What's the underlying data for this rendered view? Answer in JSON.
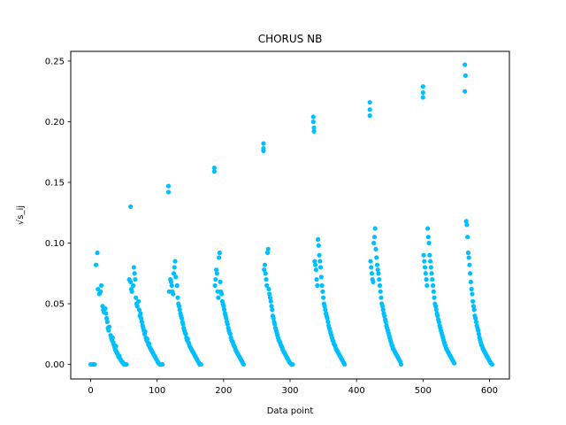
{
  "chart_data": {
    "type": "scatter",
    "title": "CHORUS NB",
    "xlabel": "Data point",
    "ylabel": "√s_ij",
    "xlim": [
      -30,
      630
    ],
    "ylim": [
      -0.012,
      0.258
    ],
    "xticks": [
      0,
      100,
      200,
      300,
      400,
      500,
      600
    ],
    "yticks": [
      0.0,
      0.05,
      0.1,
      0.15,
      0.2,
      0.25
    ],
    "ytick_labels": [
      "0.00",
      "0.05",
      "0.10",
      "0.15",
      "0.20",
      "0.25"
    ],
    "grid": false,
    "marker_color": "#00bfff",
    "points": [
      [
        0,
        0
      ],
      [
        2,
        0
      ],
      [
        4,
        0
      ],
      [
        6,
        0
      ],
      [
        8,
        0.082
      ],
      [
        10,
        0.092
      ],
      [
        11,
        0.062
      ],
      [
        13,
        0.058
      ],
      [
        15,
        0.06
      ],
      [
        16,
        0.065
      ],
      [
        18,
        0.048
      ],
      [
        19,
        0.045
      ],
      [
        20,
        0.043
      ],
      [
        22,
        0.046
      ],
      [
        23,
        0.042
      ],
      [
        24,
        0.038
      ],
      [
        25,
        0.035
      ],
      [
        26,
        0.03
      ],
      [
        27,
        0.028
      ],
      [
        28,
        0.031
      ],
      [
        30,
        0.024
      ],
      [
        31,
        0.022
      ],
      [
        32,
        0.02
      ],
      [
        33,
        0.022
      ],
      [
        34,
        0.018
      ],
      [
        35,
        0.016
      ],
      [
        36,
        0.014
      ],
      [
        37,
        0.012
      ],
      [
        38,
        0.015
      ],
      [
        39,
        0.01
      ],
      [
        40,
        0.009
      ],
      [
        41,
        0.008
      ],
      [
        42,
        0.006
      ],
      [
        43,
        0.007
      ],
      [
        44,
        0.005
      ],
      [
        45,
        0.004
      ],
      [
        46,
        0.003
      ],
      [
        47,
        0.002
      ],
      [
        48,
        0.002
      ],
      [
        49,
        0.001
      ],
      [
        50,
        0
      ],
      [
        52,
        0
      ],
      [
        54,
        0
      ],
      [
        60,
        0.13
      ],
      [
        58,
        0.07
      ],
      [
        60,
        0.068
      ],
      [
        61,
        0.062
      ],
      [
        62,
        0.06
      ],
      [
        64,
        0.065
      ],
      [
        65,
        0.08
      ],
      [
        66,
        0.075
      ],
      [
        67,
        0.07
      ],
      [
        68,
        0.055
      ],
      [
        69,
        0.05
      ],
      [
        70,
        0.048
      ],
      [
        72,
        0.052
      ],
      [
        73,
        0.045
      ],
      [
        74,
        0.04
      ],
      [
        75,
        0.042
      ],
      [
        76,
        0.038
      ],
      [
        77,
        0.035
      ],
      [
        78,
        0.032
      ],
      [
        79,
        0.03
      ],
      [
        80,
        0.028
      ],
      [
        81,
        0.025
      ],
      [
        82,
        0.027
      ],
      [
        83,
        0.022
      ],
      [
        84,
        0.02
      ],
      [
        85,
        0.021
      ],
      [
        86,
        0.018
      ],
      [
        87,
        0.016
      ],
      [
        88,
        0.017
      ],
      [
        89,
        0.014
      ],
      [
        90,
        0.013
      ],
      [
        91,
        0.012
      ],
      [
        92,
        0.011
      ],
      [
        93,
        0.01
      ],
      [
        94,
        0.009
      ],
      [
        95,
        0.008
      ],
      [
        96,
        0.007
      ],
      [
        97,
        0.006
      ],
      [
        98,
        0.005
      ],
      [
        99,
        0.004
      ],
      [
        100,
        0.003
      ],
      [
        101,
        0.002
      ],
      [
        102,
        0.001
      ],
      [
        104,
        0
      ],
      [
        106,
        0
      ],
      [
        108,
        0
      ],
      [
        117,
        0.147
      ],
      [
        117,
        0.142
      ],
      [
        118,
        0.06
      ],
      [
        120,
        0.07
      ],
      [
        121,
        0.068
      ],
      [
        122,
        0.065
      ],
      [
        123,
        0.06
      ],
      [
        124,
        0.058
      ],
      [
        125,
        0.075
      ],
      [
        126,
        0.08
      ],
      [
        127,
        0.085
      ],
      [
        128,
        0.072
      ],
      [
        130,
        0.065
      ],
      [
        131,
        0.055
      ],
      [
        132,
        0.05
      ],
      [
        133,
        0.048
      ],
      [
        134,
        0.045
      ],
      [
        135,
        0.042
      ],
      [
        136,
        0.04
      ],
      [
        137,
        0.038
      ],
      [
        138,
        0.035
      ],
      [
        139,
        0.033
      ],
      [
        140,
        0.03
      ],
      [
        141,
        0.028
      ],
      [
        142,
        0.026
      ],
      [
        143,
        0.025
      ],
      [
        144,
        0.022
      ],
      [
        145,
        0.02
      ],
      [
        146,
        0.021
      ],
      [
        147,
        0.018
      ],
      [
        148,
        0.017
      ],
      [
        149,
        0.015
      ],
      [
        150,
        0.014
      ],
      [
        151,
        0.013
      ],
      [
        152,
        0.012
      ],
      [
        153,
        0.011
      ],
      [
        154,
        0.01
      ],
      [
        155,
        0.009
      ],
      [
        156,
        0.008
      ],
      [
        157,
        0.007
      ],
      [
        158,
        0.006
      ],
      [
        159,
        0.005
      ],
      [
        160,
        0.004
      ],
      [
        161,
        0.003
      ],
      [
        162,
        0.002
      ],
      [
        163,
        0.001
      ],
      [
        164,
        0
      ],
      [
        166,
        0
      ],
      [
        186,
        0.162
      ],
      [
        186,
        0.159
      ],
      [
        187,
        0.065
      ],
      [
        188,
        0.07
      ],
      [
        189,
        0.078
      ],
      [
        190,
        0.075
      ],
      [
        191,
        0.06
      ],
      [
        192,
        0.055
      ],
      [
        193,
        0.088
      ],
      [
        194,
        0.092
      ],
      [
        195,
        0.068
      ],
      [
        196,
        0.06
      ],
      [
        197,
        0.058
      ],
      [
        198,
        0.052
      ],
      [
        199,
        0.05
      ],
      [
        200,
        0.048
      ],
      [
        201,
        0.045
      ],
      [
        202,
        0.042
      ],
      [
        203,
        0.04
      ],
      [
        204,
        0.038
      ],
      [
        205,
        0.035
      ],
      [
        206,
        0.033
      ],
      [
        207,
        0.03
      ],
      [
        208,
        0.028
      ],
      [
        209,
        0.026
      ],
      [
        210,
        0.025
      ],
      [
        211,
        0.022
      ],
      [
        212,
        0.02
      ],
      [
        213,
        0.019
      ],
      [
        214,
        0.018
      ],
      [
        215,
        0.016
      ],
      [
        216,
        0.015
      ],
      [
        217,
        0.014
      ],
      [
        218,
        0.012
      ],
      [
        219,
        0.011
      ],
      [
        220,
        0.01
      ],
      [
        221,
        0.009
      ],
      [
        222,
        0.008
      ],
      [
        223,
        0.007
      ],
      [
        224,
        0.006
      ],
      [
        225,
        0.005
      ],
      [
        226,
        0.004
      ],
      [
        227,
        0.003
      ],
      [
        228,
        0.002
      ],
      [
        229,
        0.001
      ],
      [
        230,
        0
      ],
      [
        260,
        0.182
      ],
      [
        260,
        0.178
      ],
      [
        260,
        0.176
      ],
      [
        261,
        0.078
      ],
      [
        262,
        0.082
      ],
      [
        263,
        0.075
      ],
      [
        264,
        0.07
      ],
      [
        265,
        0.065
      ],
      [
        266,
        0.092
      ],
      [
        267,
        0.095
      ],
      [
        268,
        0.062
      ],
      [
        269,
        0.058
      ],
      [
        270,
        0.055
      ],
      [
        271,
        0.052
      ],
      [
        272,
        0.048
      ],
      [
        273,
        0.045
      ],
      [
        274,
        0.04
      ],
      [
        275,
        0.038
      ],
      [
        276,
        0.035
      ],
      [
        277,
        0.033
      ],
      [
        278,
        0.03
      ],
      [
        279,
        0.028
      ],
      [
        280,
        0.026
      ],
      [
        281,
        0.024
      ],
      [
        282,
        0.022
      ],
      [
        283,
        0.02
      ],
      [
        284,
        0.019
      ],
      [
        285,
        0.018
      ],
      [
        286,
        0.016
      ],
      [
        287,
        0.015
      ],
      [
        288,
        0.014
      ],
      [
        289,
        0.012
      ],
      [
        290,
        0.011
      ],
      [
        291,
        0.01
      ],
      [
        292,
        0.009
      ],
      [
        293,
        0.008
      ],
      [
        294,
        0.007
      ],
      [
        295,
        0.006
      ],
      [
        296,
        0.005
      ],
      [
        297,
        0.004
      ],
      [
        298,
        0.003
      ],
      [
        299,
        0.002
      ],
      [
        300,
        0.001
      ],
      [
        302,
        0
      ],
      [
        304,
        0
      ],
      [
        335,
        0.204
      ],
      [
        335,
        0.2
      ],
      [
        336,
        0.195
      ],
      [
        336,
        0.192
      ],
      [
        337,
        0.085
      ],
      [
        338,
        0.082
      ],
      [
        339,
        0.078
      ],
      [
        340,
        0.07
      ],
      [
        341,
        0.065
      ],
      [
        342,
        0.103
      ],
      [
        343,
        0.098
      ],
      [
        344,
        0.09
      ],
      [
        345,
        0.085
      ],
      [
        346,
        0.08
      ],
      [
        347,
        0.072
      ],
      [
        348,
        0.065
      ],
      [
        349,
        0.06
      ],
      [
        350,
        0.055
      ],
      [
        351,
        0.05
      ],
      [
        352,
        0.048
      ],
      [
        353,
        0.045
      ],
      [
        354,
        0.042
      ],
      [
        355,
        0.04
      ],
      [
        356,
        0.038
      ],
      [
        357,
        0.035
      ],
      [
        358,
        0.032
      ],
      [
        359,
        0.03
      ],
      [
        360,
        0.028
      ],
      [
        361,
        0.026
      ],
      [
        362,
        0.024
      ],
      [
        363,
        0.022
      ],
      [
        364,
        0.02
      ],
      [
        365,
        0.019
      ],
      [
        366,
        0.017
      ],
      [
        367,
        0.016
      ],
      [
        368,
        0.015
      ],
      [
        369,
        0.013
      ],
      [
        370,
        0.012
      ],
      [
        371,
        0.011
      ],
      [
        372,
        0.01
      ],
      [
        373,
        0.009
      ],
      [
        374,
        0.008
      ],
      [
        375,
        0.007
      ],
      [
        376,
        0.006
      ],
      [
        377,
        0.005
      ],
      [
        378,
        0.004
      ],
      [
        379,
        0.003
      ],
      [
        380,
        0.002
      ],
      [
        381,
        0.001
      ],
      [
        382,
        0
      ],
      [
        420,
        0.216
      ],
      [
        420,
        0.21
      ],
      [
        420,
        0.205
      ],
      [
        421,
        0.085
      ],
      [
        422,
        0.08
      ],
      [
        423,
        0.075
      ],
      [
        424,
        0.07
      ],
      [
        425,
        0.068
      ],
      [
        426,
        0.1
      ],
      [
        427,
        0.105
      ],
      [
        428,
        0.112
      ],
      [
        429,
        0.095
      ],
      [
        430,
        0.088
      ],
      [
        431,
        0.082
      ],
      [
        432,
        0.078
      ],
      [
        433,
        0.075
      ],
      [
        434,
        0.07
      ],
      [
        435,
        0.065
      ],
      [
        436,
        0.06
      ],
      [
        437,
        0.055
      ],
      [
        438,
        0.05
      ],
      [
        439,
        0.048
      ],
      [
        440,
        0.045
      ],
      [
        441,
        0.042
      ],
      [
        442,
        0.04
      ],
      [
        443,
        0.037
      ],
      [
        444,
        0.035
      ],
      [
        445,
        0.032
      ],
      [
        446,
        0.03
      ],
      [
        447,
        0.028
      ],
      [
        448,
        0.026
      ],
      [
        449,
        0.024
      ],
      [
        450,
        0.022
      ],
      [
        451,
        0.02
      ],
      [
        452,
        0.018
      ],
      [
        453,
        0.016
      ],
      [
        454,
        0.015
      ],
      [
        455,
        0.013
      ],
      [
        456,
        0.012
      ],
      [
        457,
        0.011
      ],
      [
        458,
        0.01
      ],
      [
        459,
        0.009
      ],
      [
        460,
        0.008
      ],
      [
        461,
        0.007
      ],
      [
        462,
        0.006
      ],
      [
        463,
        0.005
      ],
      [
        464,
        0.004
      ],
      [
        465,
        0.003
      ],
      [
        466,
        0.002
      ],
      [
        467,
        0
      ],
      [
        500,
        0.229
      ],
      [
        500,
        0.224
      ],
      [
        500,
        0.22
      ],
      [
        501,
        0.09
      ],
      [
        502,
        0.085
      ],
      [
        503,
        0.08
      ],
      [
        504,
        0.075
      ],
      [
        505,
        0.07
      ],
      [
        506,
        0.065
      ],
      [
        507,
        0.112
      ],
      [
        508,
        0.105
      ],
      [
        509,
        0.1
      ],
      [
        510,
        0.09
      ],
      [
        511,
        0.085
      ],
      [
        512,
        0.08
      ],
      [
        513,
        0.075
      ],
      [
        514,
        0.07
      ],
      [
        515,
        0.065
      ],
      [
        516,
        0.06
      ],
      [
        517,
        0.055
      ],
      [
        518,
        0.05
      ],
      [
        519,
        0.048
      ],
      [
        520,
        0.045
      ],
      [
        521,
        0.042
      ],
      [
        522,
        0.04
      ],
      [
        523,
        0.037
      ],
      [
        524,
        0.035
      ],
      [
        525,
        0.032
      ],
      [
        526,
        0.03
      ],
      [
        527,
        0.028
      ],
      [
        528,
        0.026
      ],
      [
        529,
        0.024
      ],
      [
        530,
        0.022
      ],
      [
        531,
        0.02
      ],
      [
        532,
        0.018
      ],
      [
        533,
        0.016
      ],
      [
        534,
        0.015
      ],
      [
        535,
        0.013
      ],
      [
        536,
        0.012
      ],
      [
        537,
        0.011
      ],
      [
        538,
        0.01
      ],
      [
        539,
        0.009
      ],
      [
        540,
        0.008
      ],
      [
        541,
        0.007
      ],
      [
        542,
        0.006
      ],
      [
        543,
        0.005
      ],
      [
        544,
        0.004
      ],
      [
        545,
        0.003
      ],
      [
        546,
        0.002
      ],
      [
        547,
        0.001
      ],
      [
        563,
        0.247
      ],
      [
        564,
        0.238
      ],
      [
        563,
        0.225
      ],
      [
        565,
        0.118
      ],
      [
        566,
        0.115
      ],
      [
        567,
        0.105
      ],
      [
        568,
        0.092
      ],
      [
        569,
        0.088
      ],
      [
        570,
        0.082
      ],
      [
        571,
        0.075
      ],
      [
        572,
        0.068
      ],
      [
        573,
        0.062
      ],
      [
        574,
        0.058
      ],
      [
        575,
        0.052
      ],
      [
        576,
        0.048
      ],
      [
        577,
        0.045
      ],
      [
        578,
        0.04
      ],
      [
        579,
        0.038
      ],
      [
        580,
        0.035
      ],
      [
        581,
        0.032
      ],
      [
        582,
        0.03
      ],
      [
        583,
        0.028
      ],
      [
        584,
        0.025
      ],
      [
        585,
        0.022
      ],
      [
        586,
        0.02
      ],
      [
        587,
        0.018
      ],
      [
        588,
        0.016
      ],
      [
        589,
        0.015
      ],
      [
        590,
        0.013
      ],
      [
        591,
        0.012
      ],
      [
        592,
        0.011
      ],
      [
        593,
        0.01
      ],
      [
        594,
        0.009
      ],
      [
        595,
        0.008
      ],
      [
        596,
        0.007
      ],
      [
        597,
        0.006
      ],
      [
        598,
        0.005
      ],
      [
        599,
        0.004
      ],
      [
        600,
        0.003
      ],
      [
        601,
        0.002
      ],
      [
        602,
        0.001
      ],
      [
        604,
        0
      ]
    ]
  }
}
